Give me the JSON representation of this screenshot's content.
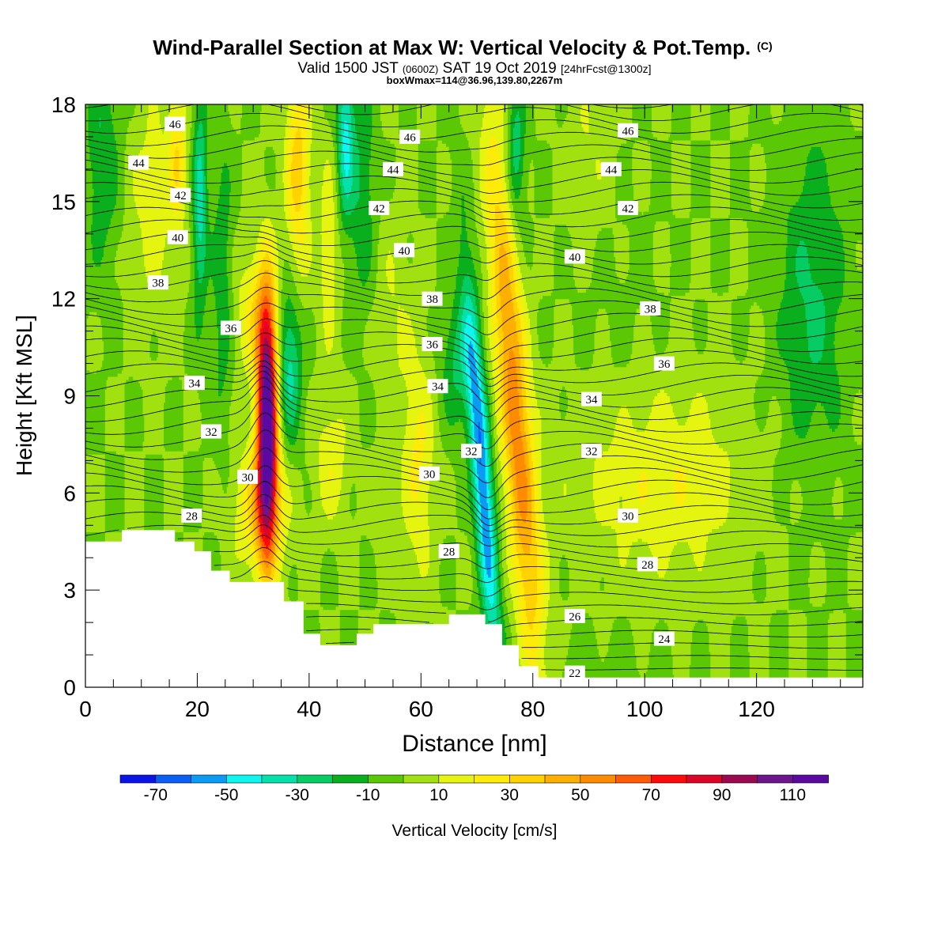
{
  "chart_data": {
    "type": "heatmap",
    "title": "Wind-Parallel Section at Max W: Vertical Velocity & Pot.Temp.",
    "title_mark": "(C)",
    "subtitle_parts": [
      "Valid 1500 JST",
      "(0600Z)",
      "SAT 19 Oct 2019",
      "[24hrFcst@1300z]"
    ],
    "subtitle2": "boxWmax=114@36.96,139.80,2267m",
    "xlabel": "Distance [nm]",
    "ylabel": "Height [Kft MSL]",
    "xlim": [
      0,
      139
    ],
    "ylim": [
      0,
      18
    ],
    "x_ticks": [
      0,
      20,
      40,
      60,
      80,
      100,
      120
    ],
    "y_ticks": [
      0,
      3,
      6,
      9,
      12,
      15,
      18
    ],
    "colorbar": {
      "label": "Vertical Velocity [cm/s]",
      "bounds": [
        -80,
        -70,
        -60,
        -50,
        -40,
        -30,
        -20,
        -10,
        0,
        10,
        20,
        30,
        40,
        50,
        60,
        70,
        80,
        90,
        100,
        110,
        120
      ],
      "tick_labels": [
        -70,
        -50,
        -30,
        -10,
        10,
        30,
        50,
        70,
        90,
        110
      ],
      "colors": [
        "#0a14e6",
        "#0a5ff5",
        "#0a9bf5",
        "#0ff5f0",
        "#05e1aa",
        "#05cd64",
        "#0aaf1e",
        "#5ac805",
        "#a0e10f",
        "#e6f50f",
        "#ffeb0a",
        "#ffd200",
        "#ffaf00",
        "#ff8c00",
        "#ff5a05",
        "#ff0a0a",
        "#dc0528",
        "#9b0a50",
        "#6e148c",
        "#5a0aa0"
      ]
    },
    "velocity_features": [
      {
        "x": 32,
        "y": 8.5,
        "value": 114
      },
      {
        "x": 72,
        "y": 16.5,
        "value": 60
      },
      {
        "x": 78,
        "y": 6.0,
        "value": 60
      },
      {
        "x": 71,
        "y": 4.0,
        "value": -55
      },
      {
        "x": 77,
        "y": 16.5,
        "value": -45
      },
      {
        "x": 46,
        "y": 17.0,
        "value": -40
      },
      {
        "x": 38,
        "y": 16.0,
        "value": 35
      },
      {
        "x": 102,
        "y": 6.5,
        "value": 10
      },
      {
        "x": 130,
        "y": 12.0,
        "value": -15
      }
    ],
    "theta_contour_labels": [
      {
        "value": "46",
        "x": 16,
        "y": 17.4
      },
      {
        "value": "44",
        "x": 9.5,
        "y": 16.2
      },
      {
        "value": "42",
        "x": 17,
        "y": 15.2
      },
      {
        "value": "40",
        "x": 16.5,
        "y": 13.9
      },
      {
        "value": "38",
        "x": 13,
        "y": 12.5
      },
      {
        "value": "36",
        "x": 26,
        "y": 11.1
      },
      {
        "value": "34",
        "x": 19.5,
        "y": 9.4
      },
      {
        "value": "32",
        "x": 22.5,
        "y": 7.9
      },
      {
        "value": "30",
        "x": 29,
        "y": 6.5
      },
      {
        "value": "28",
        "x": 19,
        "y": 5.3
      },
      {
        "value": "46",
        "x": 58,
        "y": 17.0
      },
      {
        "value": "44",
        "x": 55,
        "y": 16.0
      },
      {
        "value": "42",
        "x": 52.5,
        "y": 14.8
      },
      {
        "value": "40",
        "x": 57,
        "y": 13.5
      },
      {
        "value": "38",
        "x": 62,
        "y": 12.0
      },
      {
        "value": "36",
        "x": 62,
        "y": 10.6
      },
      {
        "value": "34",
        "x": 63,
        "y": 9.3
      },
      {
        "value": "32",
        "x": 69,
        "y": 7.3
      },
      {
        "value": "30",
        "x": 61.5,
        "y": 6.6
      },
      {
        "value": "28",
        "x": 65,
        "y": 4.2
      },
      {
        "value": "46",
        "x": 97,
        "y": 17.2
      },
      {
        "value": "44",
        "x": 94,
        "y": 16.0
      },
      {
        "value": "42",
        "x": 97,
        "y": 14.8
      },
      {
        "value": "40",
        "x": 87.5,
        "y": 13.3
      },
      {
        "value": "38",
        "x": 101,
        "y": 11.7
      },
      {
        "value": "36",
        "x": 103.5,
        "y": 10.0
      },
      {
        "value": "34",
        "x": 90.5,
        "y": 8.9
      },
      {
        "value": "32",
        "x": 90.5,
        "y": 7.3
      },
      {
        "value": "30",
        "x": 97,
        "y": 5.3
      },
      {
        "value": "28",
        "x": 100.5,
        "y": 3.8
      },
      {
        "value": "26",
        "x": 87.5,
        "y": 2.2
      },
      {
        "value": "24",
        "x": 103.5,
        "y": 1.5
      },
      {
        "value": "22",
        "x": 87.5,
        "y": 0.45
      }
    ],
    "terrain_height": [
      {
        "x": 0,
        "y": 4.5
      },
      {
        "x": 6.5,
        "y": 4.5
      },
      {
        "x": 6.5,
        "y": 4.85
      },
      {
        "x": 16,
        "y": 4.85
      },
      {
        "x": 16,
        "y": 4.5
      },
      {
        "x": 19.5,
        "y": 4.5
      },
      {
        "x": 19.5,
        "y": 4.2
      },
      {
        "x": 22.5,
        "y": 4.2
      },
      {
        "x": 22.5,
        "y": 3.6
      },
      {
        "x": 25.8,
        "y": 3.6
      },
      {
        "x": 25.8,
        "y": 3.25
      },
      {
        "x": 35.5,
        "y": 3.25
      },
      {
        "x": 35.5,
        "y": 2.65
      },
      {
        "x": 39,
        "y": 2.65
      },
      {
        "x": 39,
        "y": 1.65
      },
      {
        "x": 42,
        "y": 1.65
      },
      {
        "x": 42,
        "y": 1.3
      },
      {
        "x": 48.5,
        "y": 1.3
      },
      {
        "x": 48.5,
        "y": 1.65
      },
      {
        "x": 51.5,
        "y": 1.65
      },
      {
        "x": 51.5,
        "y": 1.95
      },
      {
        "x": 65,
        "y": 1.95
      },
      {
        "x": 65,
        "y": 2.25
      },
      {
        "x": 71.5,
        "y": 2.25
      },
      {
        "x": 71.5,
        "y": 1.95
      },
      {
        "x": 74.5,
        "y": 1.95
      },
      {
        "x": 74.5,
        "y": 1.3
      },
      {
        "x": 77.5,
        "y": 1.3
      },
      {
        "x": 77.5,
        "y": 0.65
      },
      {
        "x": 81,
        "y": 0.65
      },
      {
        "x": 81,
        "y": 0.3
      },
      {
        "x": 139,
        "y": 0.3
      }
    ]
  }
}
